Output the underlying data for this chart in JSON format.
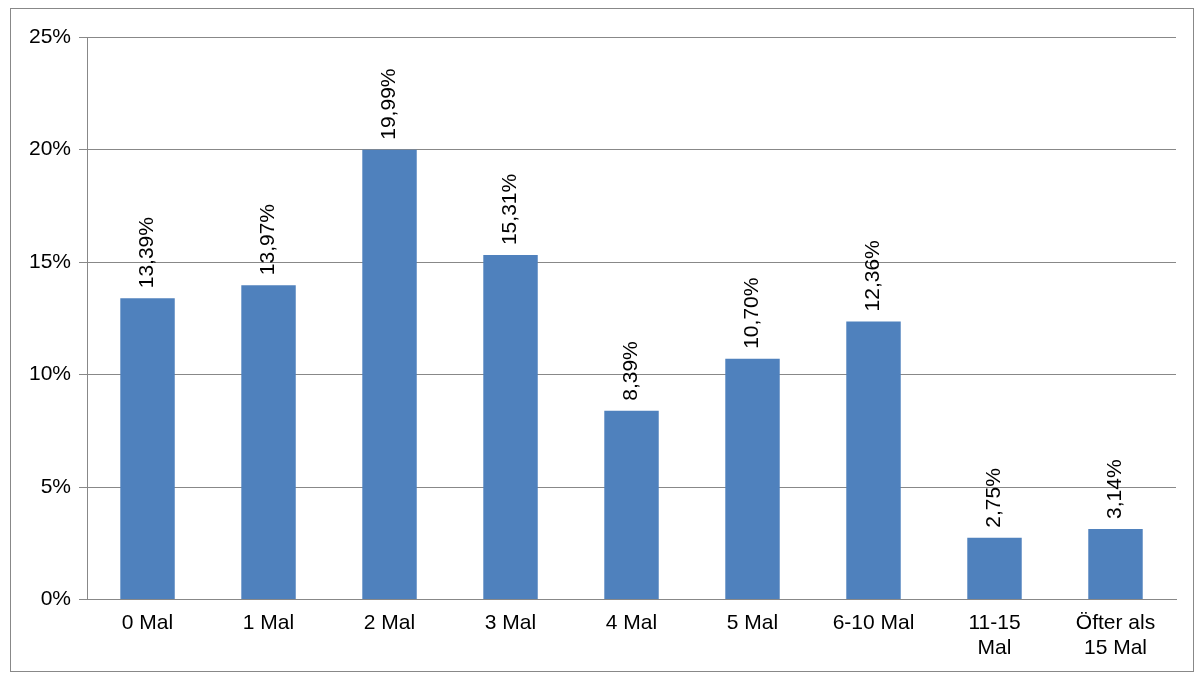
{
  "chart_data": {
    "type": "bar",
    "categories": [
      "0 Mal",
      "1 Mal",
      "2 Mal",
      "3 Mal",
      "4 Mal",
      "5 Mal",
      "6-10 Mal",
      "11-15 Mal",
      "Öfter als 15 Mal"
    ],
    "values": [
      13.39,
      13.97,
      19.99,
      15.31,
      8.39,
      10.7,
      12.36,
      2.75,
      3.14
    ],
    "value_labels": [
      "13,39%",
      "13,97%",
      "19,99%",
      "15,31%",
      "8,39%",
      "10,70%",
      "12,36%",
      "2,75%",
      "3,14%"
    ],
    "color": "#4f81bd",
    "ylim": [
      0,
      25
    ],
    "yticks": [
      {
        "value": 0,
        "label": "0%"
      },
      {
        "value": 5,
        "label": "5%"
      },
      {
        "value": 10,
        "label": "10%"
      },
      {
        "value": 15,
        "label": "15%"
      },
      {
        "value": 20,
        "label": "20%"
      },
      {
        "value": 25,
        "label": "25%"
      }
    ],
    "grid": "y",
    "legend": false
  }
}
